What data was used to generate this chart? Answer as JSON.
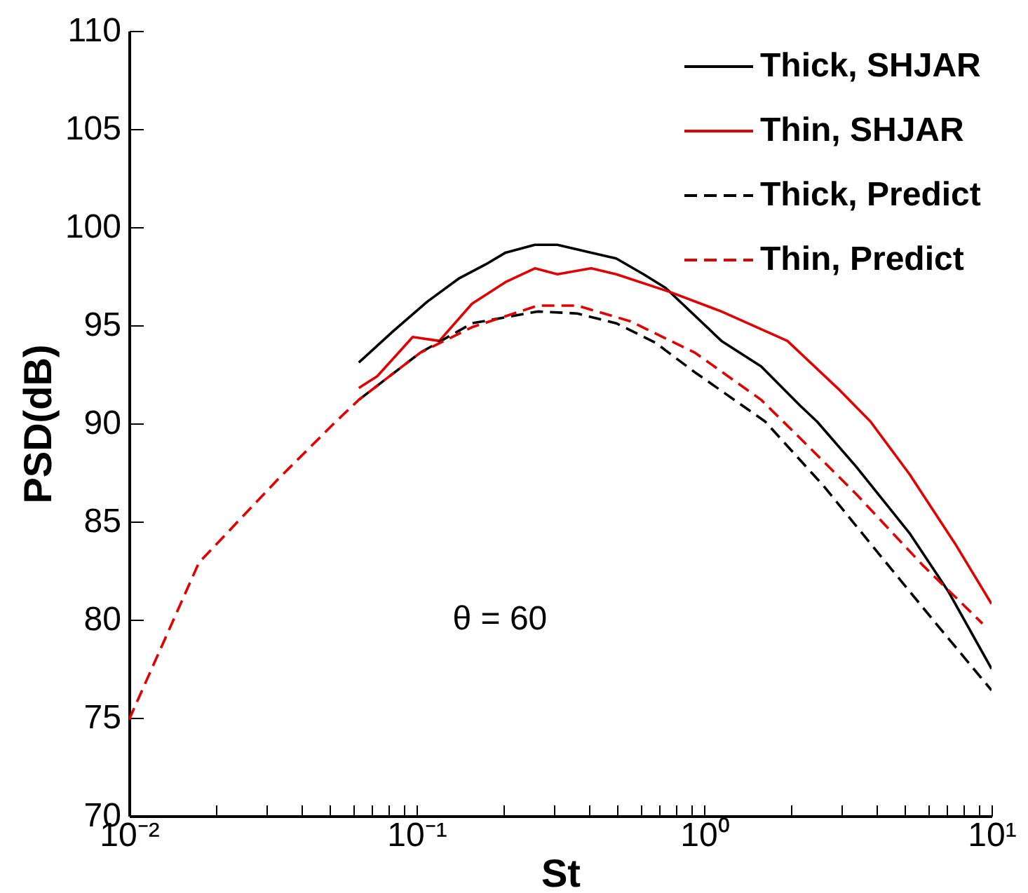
{
  "chart_data": {
    "type": "line",
    "xlabel": "St",
    "ylabel": "PSD(dB)",
    "log": "x",
    "legend": "top right",
    "grid": false,
    "xlim": [
      0.01,
      10
    ],
    "ylim": [
      70,
      110
    ],
    "xticks": [
      {
        "value": 0.01,
        "label": "10⁻²"
      },
      {
        "value": 0.02,
        "label": null
      },
      {
        "value": 0.03,
        "label": null
      },
      {
        "value": 0.04,
        "label": null
      },
      {
        "value": 0.05,
        "label": null
      },
      {
        "value": 0.06,
        "label": null
      },
      {
        "value": 0.07,
        "label": null
      },
      {
        "value": 0.08,
        "label": null
      },
      {
        "value": 0.09,
        "label": null
      },
      {
        "value": 0.1,
        "label": "10⁻¹"
      },
      {
        "value": 0.2,
        "label": null
      },
      {
        "value": 0.3,
        "label": null
      },
      {
        "value": 0.4,
        "label": null
      },
      {
        "value": 0.5,
        "label": null
      },
      {
        "value": 0.6,
        "label": null
      },
      {
        "value": 0.7,
        "label": null
      },
      {
        "value": 0.8,
        "label": null
      },
      {
        "value": 0.9,
        "label": null
      },
      {
        "value": 1,
        "label": "10⁰"
      },
      {
        "value": 2,
        "label": null
      },
      {
        "value": 3,
        "label": null
      },
      {
        "value": 4,
        "label": null
      },
      {
        "value": 5,
        "label": null
      },
      {
        "value": 6,
        "label": null
      },
      {
        "value": 7,
        "label": null
      },
      {
        "value": 8,
        "label": null
      },
      {
        "value": 9,
        "label": null
      },
      {
        "value": 10,
        "label": "10¹"
      }
    ],
    "yticks": [
      70,
      75,
      80,
      85,
      90,
      95,
      100,
      105,
      110
    ],
    "annotations": [
      "θ = 60"
    ],
    "series": [
      {
        "name": "Thick, SHJAR",
        "color": "#000000",
        "line_style": "solid",
        "x": [
          0.063,
          0.083,
          0.109,
          0.141,
          0.174,
          0.204,
          0.258,
          0.309,
          0.405,
          0.495,
          0.616,
          0.735,
          1.15,
          1.58,
          2.16,
          2.47,
          3.38,
          5.19,
          7.1,
          10
        ],
        "values": [
          93.1,
          94.7,
          96.2,
          97.4,
          98.1,
          98.7,
          99.1,
          99.1,
          98.7,
          98.4,
          97.6,
          96.9,
          94.2,
          92.9,
          90.9,
          90.1,
          87.8,
          84.4,
          81.4,
          77.5
        ]
      },
      {
        "name": "Thin, SHJAR",
        "color": "#e00000",
        "line_style": "solid",
        "x": [
          0.063,
          0.073,
          0.097,
          0.12,
          0.156,
          0.204,
          0.258,
          0.309,
          0.405,
          0.495,
          0.759,
          1.15,
          1.95,
          2.96,
          3.79,
          5.19,
          7.52,
          10
        ],
        "values": [
          91.8,
          92.4,
          94.4,
          94.2,
          96.1,
          97.2,
          97.9,
          97.6,
          97.9,
          97.6,
          96.7,
          95.7,
          94.2,
          91.7,
          90.1,
          87.4,
          83.8,
          80.8
        ]
      },
      {
        "name": "Thick,  Predict",
        "color": "#000000",
        "line_style": "dashed",
        "x": [
          0.063,
          0.103,
          0.156,
          0.264,
          0.362,
          0.495,
          0.679,
          0.93,
          1.63,
          2.61,
          4.19,
          6.41,
          10
        ],
        "values": [
          91.2,
          93.6,
          95.1,
          95.7,
          95.6,
          95.1,
          94.1,
          92.6,
          90.1,
          86.8,
          83.1,
          79.8,
          76.4
        ]
      },
      {
        "name": "Thin,  Predict",
        "color": "#e00000",
        "line_style": "dashed",
        "x": [
          0.01,
          0.0175,
          0.0327,
          0.0525,
          0.063,
          0.103,
          0.156,
          0.264,
          0.362,
          0.555,
          0.93,
          1.58,
          2.28,
          3.38,
          5.74,
          9.3
        ],
        "values": [
          74.9,
          82.9,
          87.1,
          90.1,
          91.2,
          93.6,
          94.9,
          96.0,
          96.0,
          95.2,
          93.6,
          91.2,
          88.9,
          86.4,
          82.8,
          79.8
        ]
      }
    ]
  }
}
